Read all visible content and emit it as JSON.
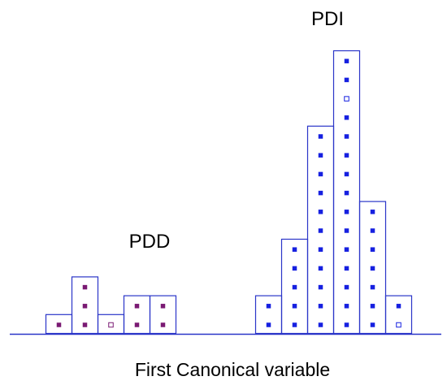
{
  "colors": {
    "axis": "#2a35c8",
    "bar_outline": "#2a35c8",
    "pdd_marker": "#7a1a73",
    "pdi_marker": "#1620e0",
    "background": "#ffffff"
  },
  "chart_data": {
    "type": "histogram",
    "xlabel": "First Canonical variable",
    "groups": [
      {
        "name": "PDD",
        "label": "PDD",
        "marker_color": "pdd_marker",
        "bins": [
          {
            "count": 1,
            "markers": [
              "filled"
            ]
          },
          {
            "count": 3,
            "markers": [
              "filled",
              "filled",
              "filled"
            ]
          },
          {
            "count": 1,
            "markers": [
              "open"
            ]
          },
          {
            "count": 2,
            "markers": [
              "filled",
              "filled"
            ]
          },
          {
            "count": 2,
            "markers": [
              "filled",
              "filled"
            ]
          }
        ]
      },
      {
        "name": "PDI",
        "label": "PDI",
        "marker_color": "pdi_marker",
        "bins": [
          {
            "count": 2,
            "markers": [
              "filled",
              "filled"
            ]
          },
          {
            "count": 5,
            "markers": [
              "filled",
              "filled",
              "filled",
              "filled",
              "filled"
            ]
          },
          {
            "count": 11,
            "markers": [
              "filled",
              "filled",
              "filled",
              "filled",
              "filled",
              "filled",
              "filled",
              "filled",
              "filled",
              "filled",
              "filled"
            ]
          },
          {
            "count": 15,
            "markers": [
              "filled",
              "filled",
              "filled",
              "filled",
              "filled",
              "filled",
              "filled",
              "filled",
              "filled",
              "filled",
              "filled",
              "filled",
              "open",
              "filled",
              "filled"
            ]
          },
          {
            "count": 7,
            "markers": [
              "filled",
              "filled",
              "filled",
              "filled",
              "filled",
              "filled",
              "filled"
            ]
          },
          {
            "count": 2,
            "markers": [
              "open",
              "filled"
            ]
          }
        ]
      }
    ]
  }
}
